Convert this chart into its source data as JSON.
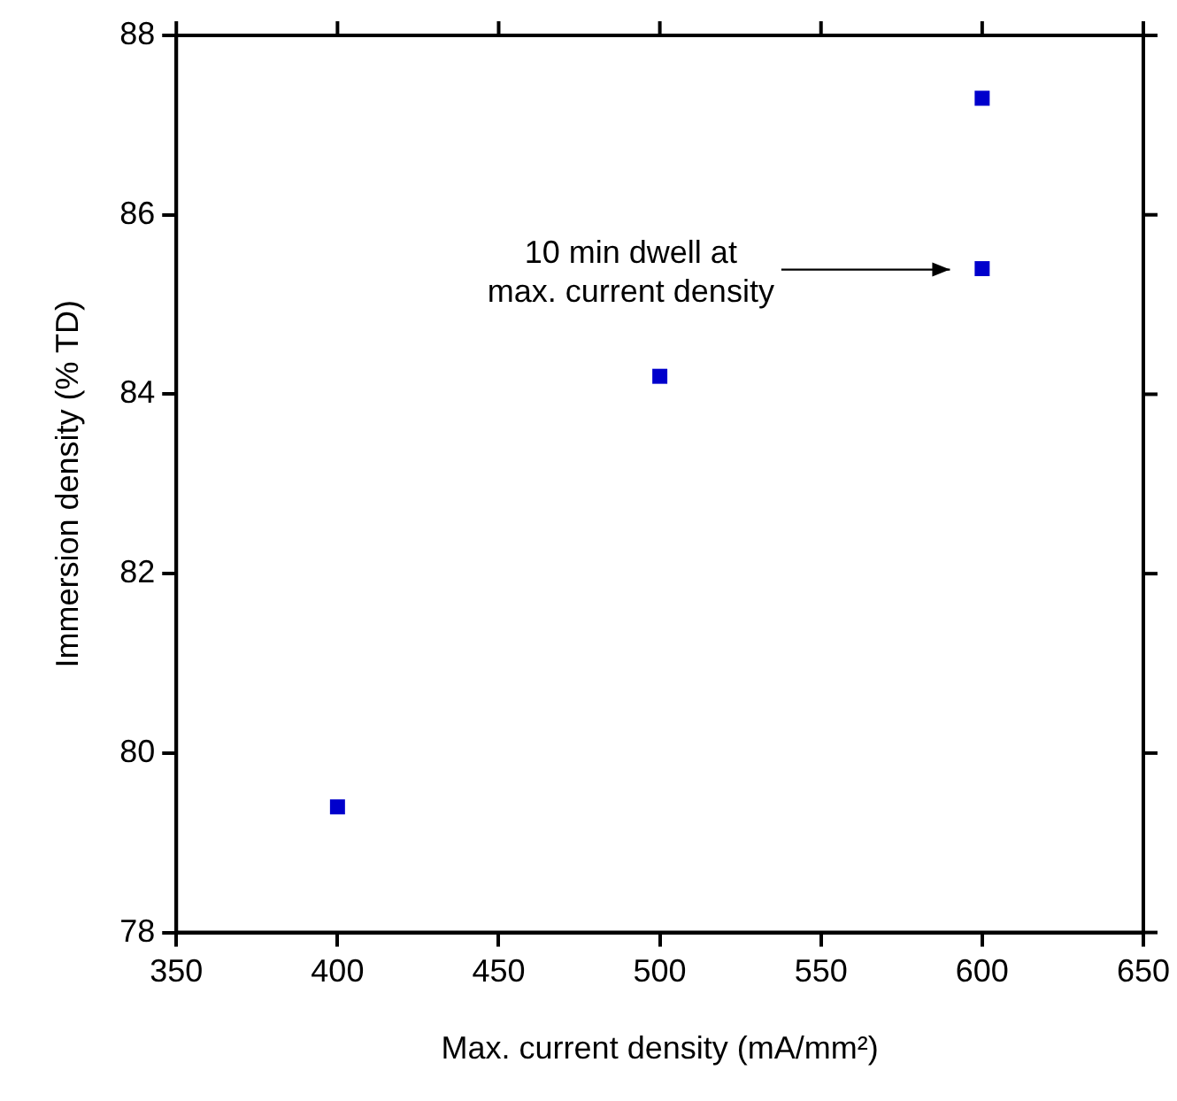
{
  "chart_data": {
    "type": "scatter",
    "xlabel": "Max. current density (mA/mm²)",
    "ylabel": "Immersion density (% TD)",
    "x": [
      400,
      500,
      600,
      600
    ],
    "series": [
      {
        "color": "#0000cc",
        "values": [
          79.4,
          84.2,
          87.3,
          85.4
        ]
      }
    ],
    "xlim": [
      350,
      650
    ],
    "xticks": [
      350,
      400,
      450,
      500,
      550,
      600,
      650
    ],
    "ylim": [
      78,
      88
    ],
    "yticks": [
      78,
      80,
      82,
      84,
      86,
      88
    ],
    "grid": false,
    "legend": false,
    "marker": "square",
    "annotations": [
      "10 min dwell at\nmax. current density"
    ]
  }
}
